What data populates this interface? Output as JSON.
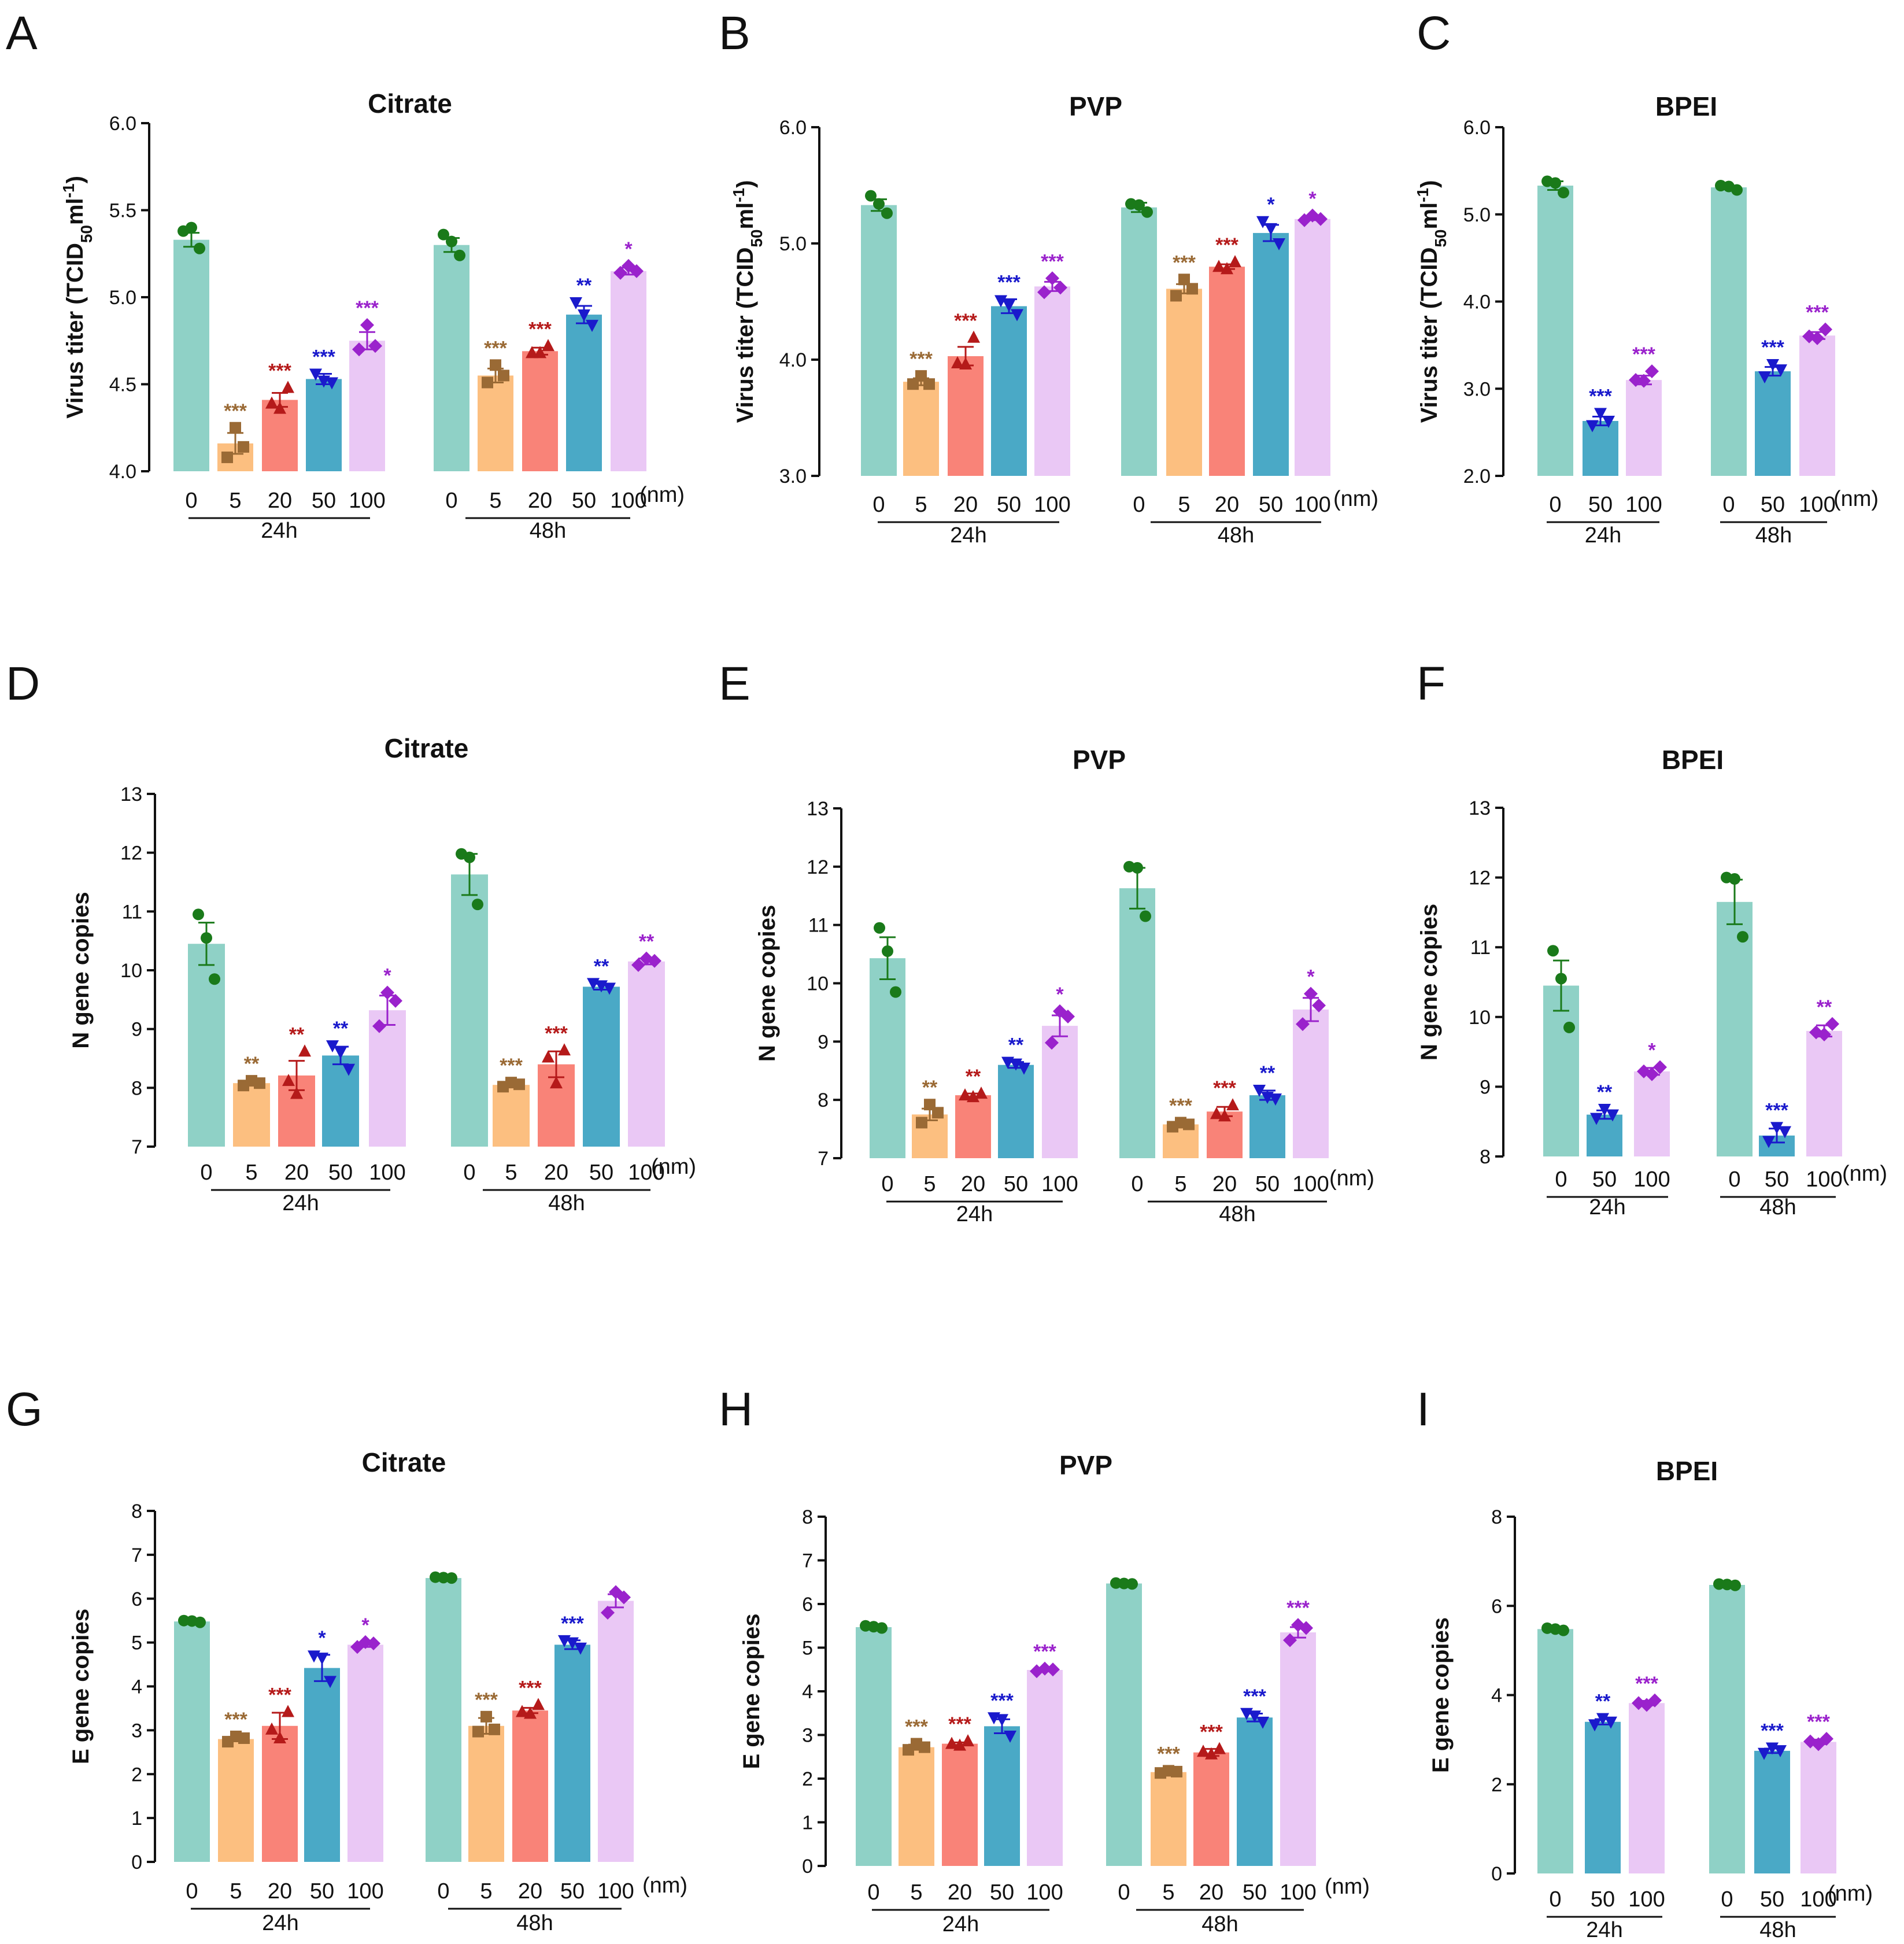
{
  "colors": {
    "0": "#8fd1c6",
    "5": "#fcbf80",
    "20": "#f98378",
    "50": "#4aa9c6",
    "100": "#eac8f5",
    "pt0": "#1a7a1a",
    "pt5": "#9a6a35",
    "pt20": "#b51a1a",
    "pt50": "#1a1acc",
    "pt100": "#9a22cc"
  },
  "chart_data": [
    {
      "panel": "A",
      "type": "bar",
      "title": "Citrate",
      "ylabel": "Virus titer (TCID50ml-1)",
      "ylabel_parts": [
        "Virus titer (TCID",
        "50",
        "ml",
        "-1",
        ")"
      ],
      "ylim": [
        4.0,
        6.0
      ],
      "yticks": [
        "4.0",
        "4.5",
        "5.0",
        "5.5",
        "6.0"
      ],
      "unit": "(nm)",
      "categories": [
        "0",
        "5",
        "20",
        "50",
        "100"
      ],
      "groups": [
        {
          "label": "24h",
          "values": [
            5.33,
            4.16,
            4.41,
            4.53,
            4.75
          ],
          "errors": [
            0.04,
            0.06,
            0.04,
            0.03,
            0.05
          ],
          "sig": [
            "",
            "***",
            "***",
            "***",
            "***"
          ],
          "points": [
            [
              5.38,
              5.4,
              5.28
            ],
            [
              4.25,
              4.14,
              4.08
            ],
            [
              4.48,
              4.39,
              4.36
            ],
            [
              4.56,
              4.52,
              4.51
            ],
            [
              4.84,
              4.72,
              4.7
            ]
          ]
        },
        {
          "label": "48h",
          "values": [
            5.3,
            4.55,
            4.69,
            4.9,
            5.15
          ],
          "errors": [
            0.04,
            0.04,
            0.02,
            0.05,
            0.02
          ],
          "sig": [
            "",
            "***",
            "***",
            "**",
            "*"
          ],
          "points": [
            [
              5.36,
              5.32,
              5.24
            ],
            [
              4.61,
              4.55,
              4.51
            ],
            [
              4.72,
              4.68,
              4.68
            ],
            [
              4.97,
              4.9,
              4.84
            ],
            [
              5.18,
              5.15,
              5.14
            ]
          ]
        }
      ]
    },
    {
      "panel": "B",
      "type": "bar",
      "title": "PVP",
      "ylabel": "Virus titer (TCID50ml-1)",
      "ylabel_parts": [
        "Virus titer (TCID",
        "50",
        "ml",
        "-1",
        ")"
      ],
      "ylim": [
        3.0,
        6.0
      ],
      "yticks": [
        "3.0",
        "4.0",
        "5.0",
        "6.0"
      ],
      "unit": "(nm)",
      "categories": [
        "0",
        "5",
        "20",
        "50",
        "100"
      ],
      "groups": [
        {
          "label": "24h",
          "values": [
            5.33,
            3.81,
            4.03,
            4.46,
            4.63
          ],
          "errors": [
            0.05,
            0.03,
            0.08,
            0.06,
            0.04
          ],
          "sig": [
            "",
            "***",
            "***",
            "***",
            "***"
          ],
          "points": [
            [
              5.41,
              5.34,
              5.26
            ],
            [
              3.86,
              3.79,
              3.79
            ],
            [
              4.19,
              3.97,
              3.96
            ],
            [
              4.51,
              4.47,
              4.39
            ],
            [
              4.7,
              4.62,
              4.58
            ]
          ]
        },
        {
          "label": "48h",
          "values": [
            5.31,
            4.61,
            4.8,
            5.09,
            5.21
          ],
          "errors": [
            0.04,
            0.04,
            0.02,
            0.07,
            0.01
          ],
          "sig": [
            "",
            "***",
            "***",
            "*",
            "*"
          ],
          "points": [
            [
              5.34,
              5.33,
              5.27
            ],
            [
              4.69,
              4.61,
              4.55
            ],
            [
              4.84,
              4.8,
              4.78
            ],
            [
              5.19,
              5.13,
              5.0
            ],
            [
              5.24,
              5.21,
              5.2
            ]
          ]
        }
      ]
    },
    {
      "panel": "C",
      "type": "bar",
      "title": "BPEI",
      "ylabel": "Virus titer (TCID50ml-1)",
      "ylabel_parts": [
        "Virus titer (TCID",
        "50",
        "ml",
        "-1",
        ")"
      ],
      "ylim": [
        2.0,
        6.0
      ],
      "yticks": [
        "2.0",
        "3.0",
        "4.0",
        "5.0",
        "6.0"
      ],
      "unit": "(nm)",
      "categories": [
        "0",
        "50",
        "100"
      ],
      "groups": [
        {
          "label": "24h",
          "values": [
            5.33,
            2.63,
            3.1
          ],
          "errors": [
            0.05,
            0.05,
            0.05
          ],
          "sig": [
            "",
            "***",
            "***"
          ],
          "points": [
            [
              5.38,
              5.36,
              5.25
            ],
            [
              2.72,
              2.63,
              2.58
            ],
            [
              3.2,
              3.1,
              3.09
            ]
          ]
        },
        {
          "label": "48h",
          "values": [
            5.31,
            3.2,
            3.61
          ],
          "errors": [
            0.02,
            0.05,
            0.04
          ],
          "sig": [
            "",
            "***",
            "***"
          ],
          "points": [
            [
              5.33,
              5.32,
              5.28
            ],
            [
              3.28,
              3.22,
              3.14
            ],
            [
              3.68,
              3.6,
              3.58
            ]
          ]
        }
      ]
    },
    {
      "panel": "D",
      "type": "bar",
      "title": "Citrate",
      "ylabel": "N gene copies",
      "ylim": [
        7,
        13
      ],
      "yticks": [
        "7",
        "8",
        "9",
        "10",
        "11",
        "12",
        "13"
      ],
      "unit": "(nm)",
      "categories": [
        "0",
        "5",
        "20",
        "50",
        "100"
      ],
      "groups": [
        {
          "label": "24h",
          "values": [
            10.45,
            8.08,
            8.21,
            8.55,
            9.32
          ],
          "errors": [
            0.36,
            0.03,
            0.25,
            0.15,
            0.25
          ],
          "sig": [
            "",
            "**",
            "**",
            "**",
            "*"
          ],
          "points": [
            [
              10.95,
              10.55,
              9.85
            ],
            [
              8.12,
              8.08,
              8.04
            ],
            [
              8.62,
              8.12,
              7.9
            ],
            [
              8.72,
              8.61,
              8.32
            ],
            [
              9.62,
              9.48,
              9.05
            ]
          ]
        },
        {
          "label": "48h",
          "values": [
            11.63,
            8.05,
            8.4,
            9.72,
            10.15
          ],
          "errors": [
            0.35,
            0.03,
            0.22,
            0.05,
            0.05
          ],
          "sig": [
            "",
            "***",
            "***",
            "**",
            "**"
          ],
          "points": [
            [
              11.98,
              11.92,
              11.12
            ],
            [
              8.09,
              8.06,
              8.02
            ],
            [
              8.64,
              8.52,
              8.08
            ],
            [
              9.78,
              9.74,
              9.7
            ],
            [
              10.2,
              10.16,
              10.09
            ]
          ]
        }
      ]
    },
    {
      "panel": "E",
      "type": "bar",
      "title": "PVP",
      "ylabel": "N gene copies",
      "ylim": [
        7,
        13
      ],
      "yticks": [
        "7",
        "8",
        "9",
        "10",
        "11",
        "12",
        "13"
      ],
      "unit": "(nm)",
      "categories": [
        "0",
        "5",
        "20",
        "50",
        "100"
      ],
      "groups": [
        {
          "label": "24h",
          "values": [
            10.43,
            7.75,
            8.08,
            8.6,
            9.27
          ],
          "errors": [
            0.36,
            0.1,
            0.03,
            0.05,
            0.18
          ],
          "sig": [
            "",
            "**",
            "**",
            "**",
            "*"
          ],
          "points": [
            [
              10.95,
              10.55,
              9.85
            ],
            [
              7.92,
              7.78,
              7.61
            ],
            [
              8.11,
              8.08,
              8.05
            ],
            [
              8.65,
              8.62,
              8.55
            ],
            [
              9.52,
              9.43,
              8.98
            ]
          ]
        },
        {
          "label": "48h",
          "values": [
            11.63,
            7.58,
            7.8,
            8.08,
            9.55
          ],
          "errors": [
            0.35,
            0.03,
            0.08,
            0.08,
            0.2
          ],
          "sig": [
            "",
            "***",
            "***",
            "**",
            "*"
          ],
          "points": [
            [
              12.0,
              11.98,
              11.15
            ],
            [
              7.61,
              7.58,
              7.54
            ],
            [
              7.91,
              7.76,
              7.72
            ],
            [
              8.17,
              8.05,
              8.02
            ],
            [
              9.82,
              9.62,
              9.3
            ]
          ]
        }
      ]
    },
    {
      "panel": "F",
      "type": "bar",
      "title": "BPEI",
      "ylabel": "N gene copies",
      "ylim": [
        8,
        13
      ],
      "yticks": [
        "8",
        "9",
        "10",
        "11",
        "12",
        "13"
      ],
      "unit": "(nm)",
      "categories": [
        "0",
        "50",
        "100"
      ],
      "groups": [
        {
          "label": "24h",
          "values": [
            10.45,
            8.6,
            9.22
          ],
          "errors": [
            0.36,
            0.06,
            0.05
          ],
          "sig": [
            "",
            "**",
            "*"
          ],
          "points": [
            [
              10.95,
              10.55,
              9.85
            ],
            [
              8.68,
              8.6,
              8.55
            ],
            [
              9.28,
              9.22,
              9.18
            ]
          ]
        },
        {
          "label": "48h",
          "values": [
            11.65,
            8.3,
            9.8
          ],
          "errors": [
            0.32,
            0.1,
            0.08
          ],
          "sig": [
            "",
            "***",
            "**"
          ],
          "points": [
            [
              12.0,
              11.98,
              11.15
            ],
            [
              8.42,
              8.36,
              8.22
            ],
            [
              9.9,
              9.78,
              9.75
            ]
          ]
        }
      ]
    },
    {
      "panel": "G",
      "type": "bar",
      "title": "Citrate",
      "ylabel": "E gene copies",
      "ylim": [
        0,
        8
      ],
      "yticks": [
        "0",
        "1",
        "2",
        "3",
        "4",
        "5",
        "6",
        "7",
        "8"
      ],
      "unit": "(nm)",
      "categories": [
        "0",
        "5",
        "20",
        "50",
        "100"
      ],
      "groups": [
        {
          "label": "24h",
          "values": [
            5.48,
            2.8,
            3.1,
            4.42,
            4.95
          ],
          "errors": [
            0.02,
            0.05,
            0.3,
            0.3,
            0.05
          ],
          "sig": [
            "",
            "***",
            "***",
            "*",
            "*"
          ],
          "points": [
            [
              5.5,
              5.49,
              5.46
            ],
            [
              2.86,
              2.82,
              2.74
            ],
            [
              3.42,
              3.02,
              2.82
            ],
            [
              4.7,
              4.65,
              4.12
            ],
            [
              5.01,
              4.98,
              4.9
            ]
          ]
        },
        {
          "label": "48h",
          "values": [
            6.47,
            3.1,
            3.45,
            4.95,
            5.95
          ],
          "errors": [
            0.01,
            0.18,
            0.06,
            0.1,
            0.15
          ],
          "sig": [
            "",
            "***",
            "***",
            "***",
            ""
          ],
          "points": [
            [
              6.49,
              6.48,
              6.47
            ],
            [
              3.31,
              3.02,
              2.97
            ],
            [
              3.58,
              3.42,
              3.38
            ],
            [
              5.05,
              5.0,
              4.88
            ],
            [
              6.15,
              6.03,
              5.68
            ]
          ]
        }
      ]
    },
    {
      "panel": "H",
      "type": "bar",
      "title": "PVP",
      "ylabel": "E gene copies",
      "ylim": [
        0,
        8
      ],
      "yticks": [
        "0",
        "1",
        "2",
        "3",
        "4",
        "5",
        "6",
        "7",
        "8"
      ],
      "unit": "(nm)",
      "categories": [
        "0",
        "5",
        "20",
        "50",
        "100"
      ],
      "groups": [
        {
          "label": "24h",
          "values": [
            5.47,
            2.72,
            2.8,
            3.2,
            4.49
          ],
          "errors": [
            0.02,
            0.06,
            0.03,
            0.16,
            0.03
          ],
          "sig": [
            "",
            "***",
            "***",
            "***",
            "***"
          ],
          "points": [
            [
              5.5,
              5.48,
              5.45
            ],
            [
              2.8,
              2.72,
              2.66
            ],
            [
              2.86,
              2.8,
              2.76
            ],
            [
              3.4,
              3.36,
              2.98
            ],
            [
              4.52,
              4.5,
              4.46
            ]
          ]
        },
        {
          "label": "48h",
          "values": [
            6.47,
            2.15,
            2.6,
            3.4,
            5.35
          ],
          "errors": [
            0.01,
            0.03,
            0.08,
            0.09,
            0.12
          ],
          "sig": [
            "",
            "***",
            "***",
            "***",
            "***"
          ],
          "points": [
            [
              6.48,
              6.47,
              6.46
            ],
            [
              2.18,
              2.16,
              2.13
            ],
            [
              2.68,
              2.62,
              2.56
            ],
            [
              3.5,
              3.44,
              3.3
            ],
            [
              5.52,
              5.45,
              5.17
            ]
          ]
        }
      ]
    },
    {
      "panel": "I",
      "type": "bar",
      "title": "BPEI",
      "ylabel": "E gene copies",
      "ylim": [
        0,
        8
      ],
      "yticks": [
        "0",
        "2",
        "4",
        "6",
        "8"
      ],
      "unit": "(nm)",
      "categories": [
        "0",
        "50",
        "100"
      ],
      "groups": [
        {
          "label": "24h",
          "values": [
            5.48,
            3.4,
            3.82
          ],
          "errors": [
            0.02,
            0.06,
            0.05
          ],
          "sig": [
            "",
            "**",
            "***"
          ],
          "points": [
            [
              5.5,
              5.48,
              5.45
            ],
            [
              3.48,
              3.4,
              3.34
            ],
            [
              3.88,
              3.82,
              3.78
            ]
          ]
        },
        {
          "label": "48h",
          "values": [
            6.47,
            2.75,
            2.95
          ],
          "errors": [
            0.01,
            0.05,
            0.05
          ],
          "sig": [
            "",
            "***",
            "***"
          ],
          "points": [
            [
              6.49,
              6.48,
              6.46
            ],
            [
              2.82,
              2.76,
              2.7
            ],
            [
              3.02,
              2.96,
              2.9
            ]
          ]
        }
      ]
    }
  ]
}
